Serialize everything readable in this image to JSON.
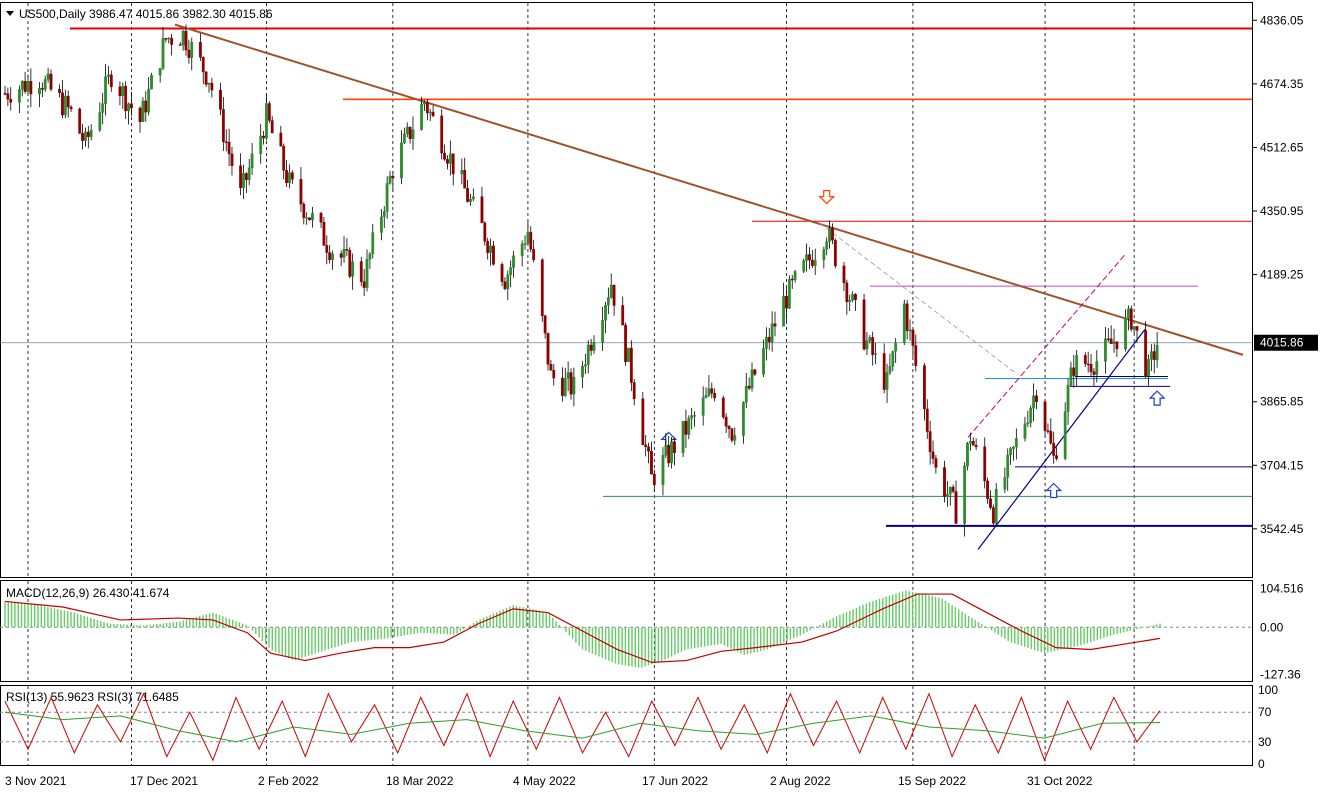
{
  "header": {
    "symbol_line": "US500,Daily  3986.47 4015.86 3982.30 4015.86"
  },
  "colors": {
    "bull": "#2e8b2e",
    "bear": "#8b0000",
    "trendline": "#a0522d",
    "resistance": "#e60000",
    "resistance2": "#ff4500",
    "support": "#00008b",
    "macd_signal": "#c00000",
    "macd_hist": "#66cc66",
    "rsi13": "#2ca02c",
    "rsi3": "#d00000"
  },
  "chart_data": [
    {
      "type": "candlestick",
      "panel": "price",
      "symbol": "US500",
      "timeframe": "Daily",
      "ohlc_last": {
        "open": 3986.47,
        "high": 4015.86,
        "low": 3982.3,
        "close": 4015.86
      },
      "current_price_label": "4015.86",
      "ylim": [
        3420,
        4880
      ],
      "y_ticks": [
        "4836.05",
        "4674.35",
        "4512.65",
        "4350.95",
        "4189.25",
        "4015.86",
        "3865.85",
        "3704.15",
        "3542.45"
      ],
      "x_ticks": [
        "3 Nov 2021",
        "17 Dec 2021",
        "2 Feb 2022",
        "18 Mar 2022",
        "4 May 2022",
        "17 Jun 2022",
        "2 Aug 2022",
        "15 Sep 2022",
        "31 Oct 2022"
      ],
      "x_range": [
        "2021-11-03",
        "2022-12-10"
      ],
      "approx_close_path": [
        {
          "d": "2021-11-03",
          "v": 4650
        },
        {
          "d": "2021-11-15",
          "v": 4690
        },
        {
          "d": "2021-11-26",
          "v": 4600
        },
        {
          "d": "2021-12-01",
          "v": 4520
        },
        {
          "d": "2021-12-10",
          "v": 4700
        },
        {
          "d": "2021-12-20",
          "v": 4580
        },
        {
          "d": "2021-12-29",
          "v": 4790
        },
        {
          "d": "2022-01-04",
          "v": 4800
        },
        {
          "d": "2022-01-13",
          "v": 4690
        },
        {
          "d": "2022-01-24",
          "v": 4390
        },
        {
          "d": "2022-02-02",
          "v": 4590
        },
        {
          "d": "2022-02-10",
          "v": 4420
        },
        {
          "d": "2022-02-24",
          "v": 4260
        },
        {
          "d": "2022-03-08",
          "v": 4180
        },
        {
          "d": "2022-03-18",
          "v": 4460
        },
        {
          "d": "2022-03-29",
          "v": 4630
        },
        {
          "d": "2022-04-11",
          "v": 4420
        },
        {
          "d": "2022-04-26",
          "v": 4180
        },
        {
          "d": "2022-05-04",
          "v": 4300
        },
        {
          "d": "2022-05-12",
          "v": 3930
        },
        {
          "d": "2022-05-20",
          "v": 3900
        },
        {
          "d": "2022-06-02",
          "v": 4170
        },
        {
          "d": "2022-06-10",
          "v": 3900
        },
        {
          "d": "2022-06-16",
          "v": 3670
        },
        {
          "d": "2022-07-08",
          "v": 3900
        },
        {
          "d": "2022-07-14",
          "v": 3790
        },
        {
          "d": "2022-08-01",
          "v": 4120
        },
        {
          "d": "2022-08-16",
          "v": 4300
        },
        {
          "d": "2022-08-29",
          "v": 4030
        },
        {
          "d": "2022-09-06",
          "v": 3910
        },
        {
          "d": "2022-09-12",
          "v": 4110
        },
        {
          "d": "2022-09-23",
          "v": 3690
        },
        {
          "d": "2022-09-30",
          "v": 3590
        },
        {
          "d": "2022-10-05",
          "v": 3780
        },
        {
          "d": "2022-10-13",
          "v": 3590
        },
        {
          "d": "2022-10-21",
          "v": 3760
        },
        {
          "d": "2022-10-28",
          "v": 3900
        },
        {
          "d": "2022-11-03",
          "v": 3720
        },
        {
          "d": "2022-11-10",
          "v": 3960
        },
        {
          "d": "2022-11-18",
          "v": 3970
        },
        {
          "d": "2022-11-25",
          "v": 4030
        },
        {
          "d": "2022-11-30",
          "v": 4080
        },
        {
          "d": "2022-12-06",
          "v": 3940
        },
        {
          "d": "2022-12-09",
          "v": 4015
        }
      ],
      "markers": [
        {
          "type": "arrow-down",
          "d": "2022-08-16",
          "v": 4385
        },
        {
          "type": "arrow-up",
          "d": "2022-06-22",
          "v": 3770
        },
        {
          "type": "arrow-up",
          "d": "2022-11-03",
          "v": 3640
        },
        {
          "type": "arrow-up",
          "d": "2022-12-09",
          "v": 3875
        }
      ]
    },
    {
      "type": "line+bar",
      "panel": "macd",
      "title": "MACD(12,26,9) 26.430 41.674",
      "y_ticks": [
        "104.516",
        "0.00",
        "-127.36"
      ],
      "ylim": [
        -140,
        120
      ],
      "series": [
        {
          "name": "histogram",
          "kind": "bar",
          "points": [
            [
              0,
              70
            ],
            [
              0.03,
              60
            ],
            [
              0.06,
              40
            ],
            [
              0.09,
              10
            ],
            [
              0.12,
              5
            ],
            [
              0.15,
              15
            ],
            [
              0.18,
              40
            ],
            [
              0.21,
              5
            ],
            [
              0.23,
              -60
            ],
            [
              0.25,
              -90
            ],
            [
              0.27,
              -70
            ],
            [
              0.3,
              -40
            ],
            [
              0.33,
              -30
            ],
            [
              0.36,
              -15
            ],
            [
              0.39,
              -20
            ],
            [
              0.41,
              20
            ],
            [
              0.44,
              60
            ],
            [
              0.47,
              40
            ],
            [
              0.5,
              -60
            ],
            [
              0.53,
              -100
            ],
            [
              0.55,
              -110
            ],
            [
              0.57,
              -90
            ],
            [
              0.59,
              -60
            ],
            [
              0.62,
              -45
            ],
            [
              0.64,
              -75
            ],
            [
              0.66,
              -60
            ],
            [
              0.69,
              -20
            ],
            [
              0.72,
              30
            ],
            [
              0.75,
              70
            ],
            [
              0.78,
              100
            ],
            [
              0.81,
              80
            ],
            [
              0.84,
              20
            ],
            [
              0.87,
              -40
            ],
            [
              0.9,
              -70
            ],
            [
              0.93,
              -50
            ],
            [
              0.96,
              -20
            ],
            [
              1.0,
              10
            ]
          ]
        },
        {
          "name": "signal",
          "kind": "line",
          "points": [
            [
              0,
              70
            ],
            [
              0.05,
              55
            ],
            [
              0.1,
              20
            ],
            [
              0.15,
              25
            ],
            [
              0.18,
              20
            ],
            [
              0.21,
              -15
            ],
            [
              0.23,
              -70
            ],
            [
              0.26,
              -90
            ],
            [
              0.29,
              -70
            ],
            [
              0.32,
              -55
            ],
            [
              0.35,
              -55
            ],
            [
              0.38,
              -40
            ],
            [
              0.41,
              10
            ],
            [
              0.44,
              50
            ],
            [
              0.47,
              40
            ],
            [
              0.5,
              -10
            ],
            [
              0.53,
              -60
            ],
            [
              0.56,
              -95
            ],
            [
              0.59,
              -90
            ],
            [
              0.62,
              -65
            ],
            [
              0.65,
              -55
            ],
            [
              0.69,
              -40
            ],
            [
              0.72,
              -10
            ],
            [
              0.76,
              50
            ],
            [
              0.79,
              90
            ],
            [
              0.82,
              90
            ],
            [
              0.85,
              40
            ],
            [
              0.88,
              -10
            ],
            [
              0.91,
              -55
            ],
            [
              0.94,
              -60
            ],
            [
              0.97,
              -45
            ],
            [
              1.0,
              -30
            ]
          ]
        }
      ]
    },
    {
      "type": "line",
      "panel": "rsi",
      "title": "RSI(13) 55.9623  RSI(3) 71.6485",
      "y_ticks": [
        "100",
        "70",
        "30",
        "0"
      ],
      "ylim": [
        0,
        100
      ],
      "series": [
        {
          "name": "RSI(13)",
          "points": [
            [
              0,
              70
            ],
            [
              0.05,
              60
            ],
            [
              0.1,
              65
            ],
            [
              0.15,
              45
            ],
            [
              0.2,
              30
            ],
            [
              0.25,
              50
            ],
            [
              0.3,
              40
            ],
            [
              0.35,
              55
            ],
            [
              0.4,
              60
            ],
            [
              0.45,
              45
            ],
            [
              0.5,
              35
            ],
            [
              0.55,
              55
            ],
            [
              0.6,
              45
            ],
            [
              0.65,
              40
            ],
            [
              0.7,
              55
            ],
            [
              0.75,
              65
            ],
            [
              0.8,
              50
            ],
            [
              0.85,
              45
            ],
            [
              0.9,
              35
            ],
            [
              0.95,
              55
            ],
            [
              1.0,
              56
            ]
          ]
        },
        {
          "name": "RSI(3)",
          "points": [
            [
              0,
              85
            ],
            [
              0.02,
              20
            ],
            [
              0.04,
              90
            ],
            [
              0.06,
              15
            ],
            [
              0.08,
              80
            ],
            [
              0.1,
              30
            ],
            [
              0.12,
              95
            ],
            [
              0.14,
              10
            ],
            [
              0.16,
              70
            ],
            [
              0.18,
              5
            ],
            [
              0.2,
              90
            ],
            [
              0.22,
              20
            ],
            [
              0.24,
              85
            ],
            [
              0.26,
              10
            ],
            [
              0.28,
              95
            ],
            [
              0.3,
              30
            ],
            [
              0.32,
              80
            ],
            [
              0.34,
              15
            ],
            [
              0.36,
              90
            ],
            [
              0.38,
              25
            ],
            [
              0.4,
              95
            ],
            [
              0.42,
              10
            ],
            [
              0.44,
              85
            ],
            [
              0.46,
              20
            ],
            [
              0.48,
              90
            ],
            [
              0.5,
              15
            ],
            [
              0.52,
              70
            ],
            [
              0.54,
              10
            ],
            [
              0.56,
              85
            ],
            [
              0.58,
              25
            ],
            [
              0.6,
              90
            ],
            [
              0.62,
              20
            ],
            [
              0.64,
              80
            ],
            [
              0.66,
              15
            ],
            [
              0.68,
              95
            ],
            [
              0.7,
              25
            ],
            [
              0.72,
              85
            ],
            [
              0.74,
              15
            ],
            [
              0.76,
              90
            ],
            [
              0.78,
              20
            ],
            [
              0.8,
              95
            ],
            [
              0.82,
              10
            ],
            [
              0.84,
              80
            ],
            [
              0.86,
              15
            ],
            [
              0.88,
              90
            ],
            [
              0.9,
              5
            ],
            [
              0.92,
              85
            ],
            [
              0.94,
              20
            ],
            [
              0.96,
              90
            ],
            [
              0.98,
              30
            ],
            [
              1.0,
              72
            ]
          ]
        }
      ]
    }
  ]
}
